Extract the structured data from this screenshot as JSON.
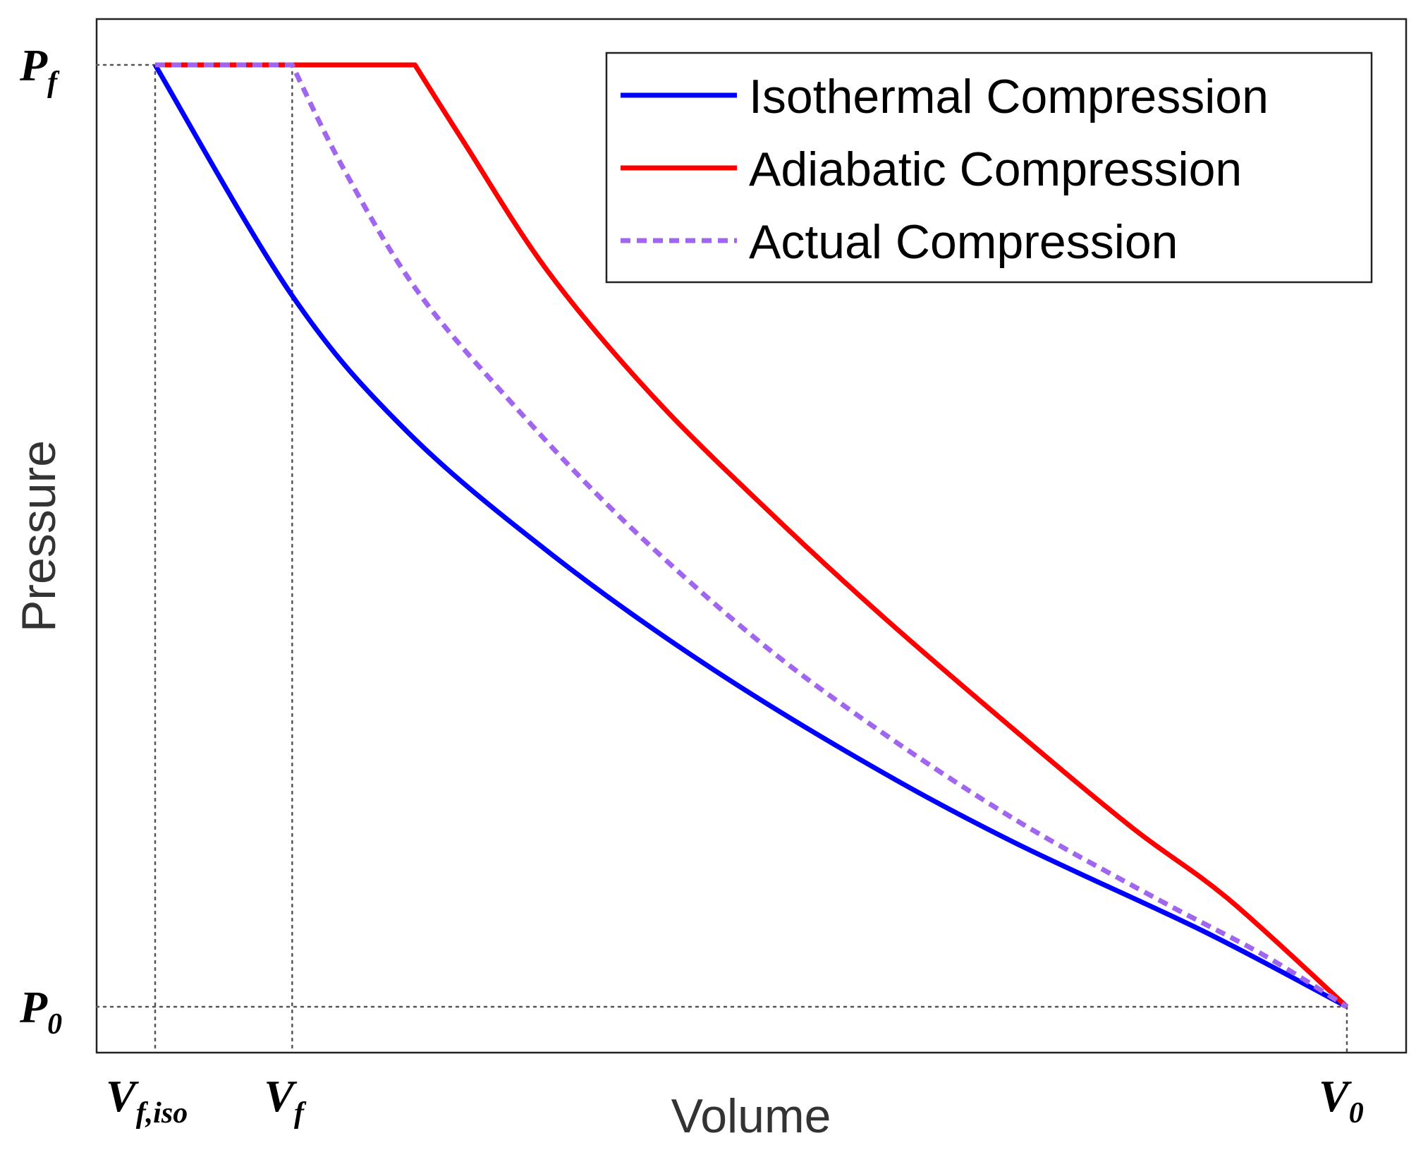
{
  "chart_data": {
    "type": "line",
    "title": "",
    "xlabel": "Volume",
    "ylabel": "Pressure",
    "xlim": [
      0,
      1
    ],
    "ylim": [
      0,
      1
    ],
    "grid": false,
    "legend_position": "top-right",
    "tick_labels": {
      "y": [
        {
          "name": "P",
          "sub": "f",
          "value": 1.0
        },
        {
          "name": "P",
          "sub": "0",
          "value": 0.0
        }
      ],
      "x": [
        {
          "name": "V",
          "sub": "f,iso",
          "value": 0.0
        },
        {
          "name": "V",
          "sub": "f",
          "value": 0.115
        },
        {
          "name": "V",
          "sub": "0",
          "value": 1.0
        }
      ]
    },
    "reference_lines": [
      {
        "orientation": "horizontal",
        "value": 1.0,
        "style": "dotted"
      },
      {
        "orientation": "horizontal",
        "value": 0.0,
        "style": "dotted"
      },
      {
        "orientation": "vertical",
        "value": 0.0,
        "style": "dotted"
      },
      {
        "orientation": "vertical",
        "value": 0.115,
        "style": "dotted"
      },
      {
        "orientation": "vertical",
        "value": 1.0,
        "style": "dotted"
      }
    ],
    "series": [
      {
        "name": "Isothermal Compression",
        "color": "#0000ff",
        "dash": "solid",
        "x": [
          0.0,
          0.115,
          0.212,
          0.333,
          0.46,
          0.595,
          0.72,
          0.88,
          1.0
        ],
        "y": [
          1.0,
          0.755,
          0.61,
          0.48,
          0.365,
          0.26,
          0.175,
          0.08,
          0.0
        ]
      },
      {
        "name": "Adiabatic Compression",
        "color": "#ff0000",
        "dash": "solid",
        "x": [
          0.0,
          0.218,
          0.258,
          0.33,
          0.42,
          0.52,
          0.61,
          0.72,
          0.82,
          0.9,
          1.0
        ],
        "y": [
          1.0,
          1.0,
          0.92,
          0.78,
          0.645,
          0.52,
          0.415,
          0.295,
          0.19,
          0.115,
          0.0
        ]
      },
      {
        "name": "Actual Compression",
        "color": "#a066f0",
        "dash": "dashed",
        "x": [
          0.0,
          0.115,
          0.158,
          0.22,
          0.3,
          0.39,
          0.5,
          0.6,
          0.72,
          0.84,
          0.93,
          1.0
        ],
        "y": [
          1.0,
          1.0,
          0.89,
          0.76,
          0.64,
          0.52,
          0.395,
          0.3,
          0.2,
          0.115,
          0.055,
          0.0
        ]
      }
    ]
  }
}
